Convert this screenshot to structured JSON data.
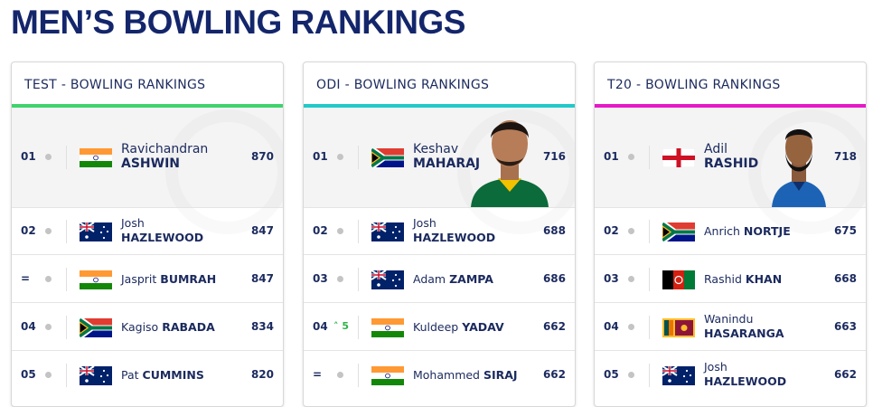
{
  "title": "MEN’S BOWLING RANKINGS",
  "panels": [
    {
      "format": "TEST",
      "heading": "- BOWLING RANKINGS",
      "accent": "#3ed36d",
      "rows": [
        {
          "rank": "01",
          "first": "Ravichandran",
          "last": "ASHWIN",
          "rating": 870
        },
        {
          "rank": "02",
          "first": "Josh",
          "last": "HAZLEWOOD",
          "rating": 847
        },
        {
          "rank": "=",
          "first": "Jasprit",
          "last": "BUMRAH",
          "rating": 847
        },
        {
          "rank": "04",
          "first": "Kagiso",
          "last": "RABADA",
          "rating": 834
        },
        {
          "rank": "05",
          "first": "Pat",
          "last": "CUMMINS",
          "rating": 820
        }
      ]
    },
    {
      "format": "ODI",
      "heading": "- BOWLING RANKINGS",
      "accent": "#22c9c9",
      "rows": [
        {
          "rank": "01",
          "first": "Keshav",
          "last": "MAHARAJ",
          "rating": 716
        },
        {
          "rank": "02",
          "first": "Josh",
          "last": "HAZLEWOOD",
          "rating": 688
        },
        {
          "rank": "03",
          "first": "Adam",
          "last": "ZAMPA",
          "rating": 686
        },
        {
          "rank": "04",
          "movement": 5,
          "first": "Kuldeep",
          "last": "YADAV",
          "rating": 662
        },
        {
          "rank": "=",
          "first": "Mohammed",
          "last": "SIRAJ",
          "rating": 662
        }
      ]
    },
    {
      "format": "T20",
      "heading": "- BOWLING RANKINGS",
      "accent": "#e619c8",
      "rows": [
        {
          "rank": "01",
          "first": "Adil",
          "last": "RASHID",
          "rating": 718
        },
        {
          "rank": "02",
          "first": "Anrich",
          "last": "NORTJE",
          "rating": 675
        },
        {
          "rank": "03",
          "first": "Rashid",
          "last": "KHAN",
          "rating": 668
        },
        {
          "rank": "04",
          "first": "Wanindu",
          "last": "HASARANGA",
          "rating": 663
        },
        {
          "rank": "05",
          "first": "Josh",
          "last": "HAZLEWOOD",
          "rating": 662
        }
      ]
    }
  ]
}
